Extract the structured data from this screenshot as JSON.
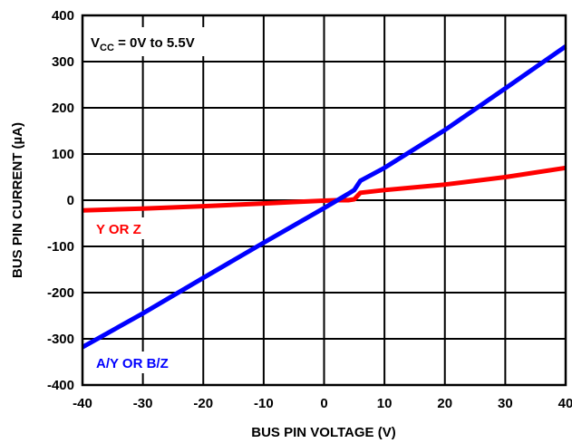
{
  "chart_data": {
    "type": "line",
    "title": "",
    "xlabel": "BUS PIN VOLTAGE (V)",
    "ylabel": "BUS PIN CURRENT (µA)",
    "xlim": [
      -40,
      40
    ],
    "ylim": [
      -400,
      400
    ],
    "x_ticks": [
      "-40",
      "-30",
      "-20",
      "-10",
      "0",
      "10",
      "20",
      "30",
      "40"
    ],
    "y_ticks": [
      "400",
      "300",
      "200",
      "100",
      "0",
      "-100",
      "-200",
      "-300",
      "-400"
    ],
    "grid": true,
    "condition": {
      "prefix": "V",
      "subscript": "CC",
      "suffix": " = 0V to 5.5V"
    },
    "series": [
      {
        "name": "Y OR Z",
        "color": "#ff0000",
        "x": [
          -40,
          -30,
          -20,
          -10,
          -5,
          0,
          2,
          3,
          4,
          5,
          6,
          10,
          20,
          30,
          40
        ],
        "y": [
          -22,
          -18,
          -13,
          -7,
          -4,
          -1,
          0,
          0,
          0,
          2,
          16,
          22,
          34,
          50,
          70
        ]
      },
      {
        "name": "A/Y OR B/Z",
        "color": "#0000ff",
        "x": [
          -40,
          -30,
          -20,
          -10,
          0,
          4,
          5,
          6,
          10,
          20,
          30,
          40
        ],
        "y": [
          -318,
          -245,
          -168,
          -92,
          -17,
          14,
          22,
          42,
          70,
          152,
          242,
          333
        ]
      }
    ]
  }
}
